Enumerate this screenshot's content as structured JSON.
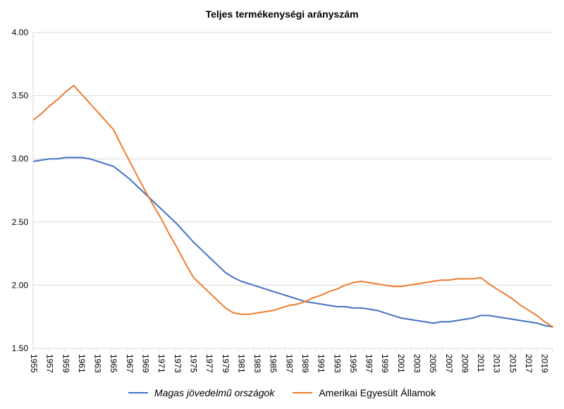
{
  "title": "Teljes termékenységi arányszám",
  "colors": {
    "high_income_line": "#4472c4",
    "usa_line": "#ed7d31",
    "grid": "#d9d9d9",
    "text": "#000000"
  },
  "chart_data": {
    "type": "line",
    "title": "Teljes termékenységi arányszám",
    "xlabel": "",
    "ylabel": "",
    "ylim": [
      1.5,
      4.0
    ],
    "y_ticks": [
      4.0,
      3.5,
      3.0,
      2.5,
      2.0,
      1.5
    ],
    "grid": "horizontal",
    "legend_position": "bottom",
    "x_tick_labels": [
      "1955",
      "1957",
      "1959",
      "1961",
      "1963",
      "1965",
      "1967",
      "1969",
      "1971",
      "1973",
      "1975",
      "1977",
      "1979",
      "1981",
      "1983",
      "1985",
      "1987",
      "1989",
      "1991",
      "1993",
      "1995",
      "1997",
      "1999",
      "2001",
      "2003",
      "2005",
      "2007",
      "2009",
      "2011",
      "2013",
      "2015",
      "2017",
      "2019"
    ],
    "x": [
      1955,
      1956,
      1957,
      1958,
      1959,
      1960,
      1961,
      1962,
      1963,
      1964,
      1965,
      1966,
      1967,
      1968,
      1969,
      1970,
      1971,
      1972,
      1973,
      1974,
      1975,
      1976,
      1977,
      1978,
      1979,
      1980,
      1981,
      1982,
      1983,
      1984,
      1985,
      1986,
      1987,
      1988,
      1989,
      1990,
      1991,
      1992,
      1993,
      1994,
      1995,
      1996,
      1997,
      1998,
      1999,
      2000,
      2001,
      2002,
      2003,
      2004,
      2005,
      2006,
      2007,
      2008,
      2009,
      2010,
      2011,
      2012,
      2013,
      2014,
      2015,
      2016,
      2017,
      2018,
      2019,
      2020
    ],
    "series": [
      {
        "name": "Magas jövedelmű országok",
        "color": "#4472c4",
        "italic": true,
        "values": [
          2.98,
          2.99,
          3.0,
          3.0,
          3.01,
          3.01,
          3.01,
          3.0,
          2.98,
          2.96,
          2.94,
          2.89,
          2.84,
          2.78,
          2.72,
          2.66,
          2.6,
          2.54,
          2.48,
          2.41,
          2.34,
          2.28,
          2.22,
          2.16,
          2.1,
          2.06,
          2.03,
          2.01,
          1.99,
          1.97,
          1.95,
          1.93,
          1.91,
          1.89,
          1.87,
          1.86,
          1.85,
          1.84,
          1.83,
          1.83,
          1.82,
          1.82,
          1.81,
          1.8,
          1.78,
          1.76,
          1.74,
          1.73,
          1.72,
          1.71,
          1.7,
          1.71,
          1.71,
          1.72,
          1.73,
          1.74,
          1.76,
          1.76,
          1.75,
          1.74,
          1.73,
          1.72,
          1.71,
          1.7,
          1.68,
          1.67
        ]
      },
      {
        "name": "Amerikai Egyesült Államok",
        "color": "#ed7d31",
        "italic": false,
        "values": [
          3.31,
          3.36,
          3.42,
          3.47,
          3.53,
          3.58,
          3.51,
          3.44,
          3.37,
          3.3,
          3.23,
          3.1,
          2.98,
          2.86,
          2.74,
          2.63,
          2.52,
          2.4,
          2.29,
          2.17,
          2.06,
          2.0,
          1.94,
          1.88,
          1.82,
          1.78,
          1.77,
          1.77,
          1.78,
          1.79,
          1.8,
          1.82,
          1.84,
          1.85,
          1.87,
          1.9,
          1.92,
          1.95,
          1.97,
          2.0,
          2.02,
          2.03,
          2.02,
          2.01,
          2.0,
          1.99,
          1.99,
          2.0,
          2.01,
          2.02,
          2.03,
          2.04,
          2.04,
          2.05,
          2.05,
          2.05,
          2.06,
          2.01,
          1.97,
          1.93,
          1.89,
          1.84,
          1.8,
          1.76,
          1.71,
          1.67
        ]
      }
    ]
  }
}
